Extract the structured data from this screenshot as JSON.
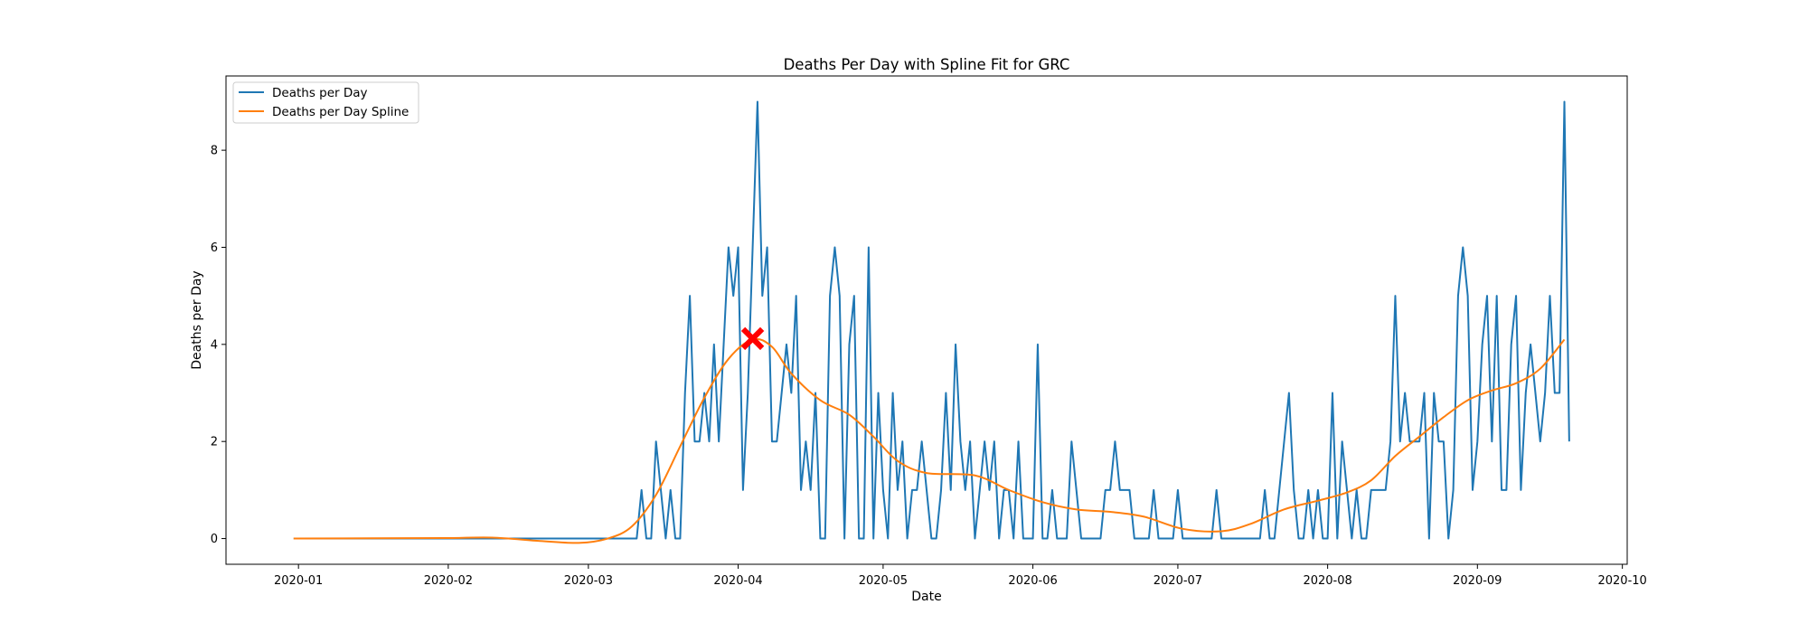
{
  "chart_data": {
    "type": "line",
    "title": "Deaths Per Day with Spline Fit for GRC",
    "xlabel": "Date",
    "ylabel": "Deaths per Day",
    "x_ticks": [
      "2020-01",
      "2020-02",
      "2020-03",
      "2020-04",
      "2020-05",
      "2020-06",
      "2020-07",
      "2020-08",
      "2020-09",
      "2020-10"
    ],
    "y_ticks": [
      0,
      2,
      4,
      6,
      8
    ],
    "xlim": [
      "2019-12-17",
      "2020-10-02"
    ],
    "ylim": [
      -0.53,
      9.53
    ],
    "legend_position": "upper-left",
    "grid": false,
    "series": [
      {
        "name": "Deaths per Day",
        "color": "#1f77b4",
        "x_start": "2019-12-31",
        "x_end": "2020-09-19",
        "values": [
          0,
          0,
          0,
          0,
          0,
          0,
          0,
          0,
          0,
          0,
          0,
          0,
          0,
          0,
          0,
          0,
          0,
          0,
          0,
          0,
          0,
          0,
          0,
          0,
          0,
          0,
          0,
          0,
          0,
          0,
          0,
          0,
          0,
          0,
          0,
          0,
          0,
          0,
          0,
          0,
          0,
          0,
          0,
          0,
          0,
          0,
          0,
          0,
          0,
          0,
          0,
          0,
          0,
          0,
          0,
          0,
          0,
          0,
          0,
          0,
          0,
          0,
          0,
          0,
          0,
          0,
          0,
          0,
          0,
          0,
          0,
          0,
          1,
          0,
          0,
          2,
          1,
          0,
          1,
          0,
          0,
          3,
          5,
          2,
          2,
          3,
          2,
          4,
          2,
          4,
          6,
          5,
          6,
          1,
          3,
          6,
          9,
          5,
          6,
          2,
          2,
          3,
          4,
          3,
          5,
          1,
          2,
          1,
          3,
          0,
          0,
          5,
          6,
          5,
          0,
          4,
          5,
          0,
          0,
          6,
          0,
          3,
          1,
          0,
          3,
          1,
          2,
          0,
          1,
          1,
          2,
          1,
          0,
          0,
          1,
          3,
          1,
          4,
          2,
          1,
          2,
          0,
          1,
          2,
          1,
          2,
          0,
          1,
          1,
          0,
          2,
          0,
          0,
          0,
          4,
          0,
          0,
          1,
          0,
          0,
          0,
          2,
          1,
          0,
          0,
          0,
          0,
          0,
          1,
          1,
          2,
          1,
          1,
          1,
          0,
          0,
          0,
          0,
          1,
          0,
          0,
          0,
          0,
          1,
          0,
          0,
          0,
          0,
          0,
          0,
          0,
          1,
          0,
          0,
          0,
          0,
          0,
          0,
          0,
          0,
          0,
          1,
          0,
          0,
          1,
          2,
          3,
          1,
          0,
          0,
          1,
          0,
          1,
          0,
          0,
          3,
          0,
          2,
          1,
          0,
          1,
          0,
          0,
          1,
          1,
          1,
          1,
          2,
          5,
          2,
          3,
          2,
          2,
          2,
          3,
          0,
          3,
          2,
          2,
          0,
          1,
          5,
          6,
          5,
          1,
          2,
          4,
          5,
          2,
          5,
          1,
          1,
          4,
          5,
          1,
          3,
          4,
          3,
          2,
          3,
          5,
          3,
          3,
          9,
          2
        ]
      },
      {
        "name": "Deaths per Day Spline",
        "color": "#ff7f0e",
        "knots": [
          [
            "2019-12-31",
            0
          ],
          [
            "2020-01-31",
            0.01
          ],
          [
            "2020-02-10",
            0.02
          ],
          [
            "2020-02-20",
            -0.05
          ],
          [
            "2020-02-28",
            -0.09
          ],
          [
            "2020-03-05",
            0.0
          ],
          [
            "2020-03-10",
            0.25
          ],
          [
            "2020-03-15",
            0.9
          ],
          [
            "2020-03-20",
            1.9
          ],
          [
            "2020-03-25",
            2.9
          ],
          [
            "2020-03-30",
            3.7
          ],
          [
            "2020-04-04",
            4.1
          ],
          [
            "2020-04-08",
            3.95
          ],
          [
            "2020-04-12",
            3.4
          ],
          [
            "2020-04-18",
            2.85
          ],
          [
            "2020-04-24",
            2.55
          ],
          [
            "2020-04-29",
            2.1
          ],
          [
            "2020-05-04",
            1.6
          ],
          [
            "2020-05-10",
            1.35
          ],
          [
            "2020-05-20",
            1.3
          ],
          [
            "2020-05-27",
            1.0
          ],
          [
            "2020-06-03",
            0.75
          ],
          [
            "2020-06-10",
            0.6
          ],
          [
            "2020-06-17",
            0.55
          ],
          [
            "2020-06-24",
            0.45
          ],
          [
            "2020-07-02",
            0.2
          ],
          [
            "2020-07-10",
            0.15
          ],
          [
            "2020-07-16",
            0.3
          ],
          [
            "2020-07-23",
            0.6
          ],
          [
            "2020-07-30",
            0.78
          ],
          [
            "2020-08-05",
            0.95
          ],
          [
            "2020-08-10",
            1.2
          ],
          [
            "2020-08-15",
            1.7
          ],
          [
            "2020-08-20",
            2.1
          ],
          [
            "2020-08-25",
            2.5
          ],
          [
            "2020-08-30",
            2.85
          ],
          [
            "2020-09-04",
            3.05
          ],
          [
            "2020-09-09",
            3.2
          ],
          [
            "2020-09-14",
            3.5
          ],
          [
            "2020-09-19",
            4.1
          ]
        ]
      }
    ],
    "annotations": [
      {
        "type": "marker",
        "shape": "x",
        "color": "#ff0000",
        "x": "2020-04-04",
        "y": 4.12
      }
    ]
  }
}
